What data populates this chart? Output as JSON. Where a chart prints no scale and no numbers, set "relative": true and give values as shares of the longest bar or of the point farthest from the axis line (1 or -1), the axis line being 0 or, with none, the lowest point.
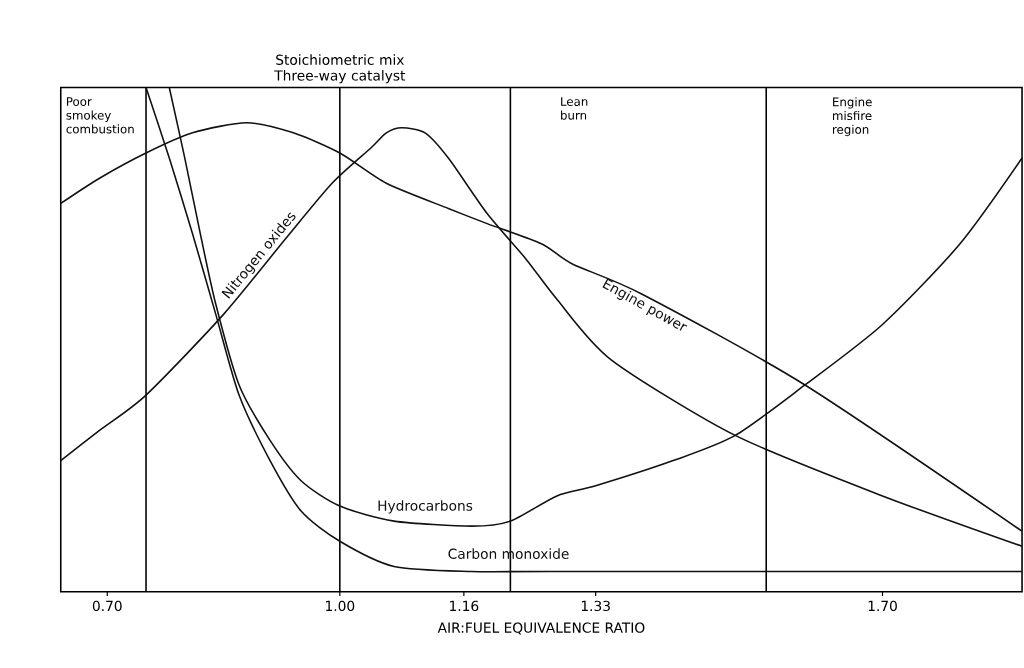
{
  "chart_data": {
    "type": "line",
    "relative": true,
    "xlabel": "AIR:FUEL EQUIVALENCE RATIO",
    "xlim": [
      0.64,
      1.88
    ],
    "xticks": [
      {
        "value": 0.7,
        "label": "0.70"
      },
      {
        "value": 1.0,
        "label": "1.00"
      },
      {
        "value": 1.16,
        "label": "1.16"
      },
      {
        "value": 1.33,
        "label": "1.33"
      },
      {
        "value": 1.7,
        "label": "1.70"
      }
    ],
    "tick_labels": "x",
    "series": [
      {
        "name": "Engine power",
        "color": "#111111",
        "x": [
          0.64,
          0.69,
          0.75,
          0.81,
          0.88,
          0.94,
          1.0,
          1.06,
          1.14,
          1.19,
          1.26,
          1.3,
          1.39,
          1.6,
          1.88
        ],
        "values": [
          0.77,
          0.82,
          0.87,
          0.91,
          0.93,
          0.91,
          0.87,
          0.81,
          0.76,
          0.73,
          0.69,
          0.65,
          0.59,
          0.41,
          0.12
        ]
      },
      {
        "name": "Nitrogen oxides",
        "color": "#111111",
        "x": [
          0.64,
          0.69,
          0.75,
          0.85,
          0.93,
          0.99,
          1.04,
          1.06,
          1.08,
          1.11,
          1.14,
          1.19,
          1.24,
          1.28,
          1.35,
          1.51,
          1.7,
          1.88
        ],
        "values": [
          0.26,
          0.32,
          0.39,
          0.55,
          0.7,
          0.81,
          0.88,
          0.91,
          0.92,
          0.91,
          0.86,
          0.75,
          0.66,
          0.58,
          0.46,
          0.31,
          0.19,
          0.09
        ]
      },
      {
        "name": "Hydrocarbons",
        "color": "#111111",
        "x": [
          0.78,
          0.8,
          0.82,
          0.84,
          0.87,
          0.91,
          0.95,
          1.0,
          1.07,
          1.17,
          1.22,
          1.28,
          1.33,
          1.43,
          1.51,
          1.6,
          1.7,
          1.8,
          1.88
        ],
        "values": [
          1.0,
          0.86,
          0.71,
          0.57,
          0.41,
          0.3,
          0.22,
          0.17,
          0.14,
          0.13,
          0.14,
          0.19,
          0.21,
          0.26,
          0.31,
          0.41,
          0.53,
          0.69,
          0.86
        ]
      },
      {
        "name": "Carbon monoxide",
        "color": "#111111",
        "x": [
          0.75,
          0.78,
          0.81,
          0.84,
          0.87,
          0.91,
          0.95,
          1.0,
          1.07,
          1.17,
          1.27,
          1.88
        ],
        "values": [
          1.0,
          0.86,
          0.71,
          0.55,
          0.39,
          0.26,
          0.16,
          0.1,
          0.05,
          0.04,
          0.04,
          0.04
        ]
      }
    ],
    "ref_lines": [
      {
        "axis": "x",
        "value": 0.75
      },
      {
        "axis": "x",
        "value": 1.0,
        "label": "Stoichiometric mix Three-way catalyst"
      },
      {
        "axis": "x",
        "value": 1.22
      },
      {
        "axis": "x",
        "value": 1.55
      }
    ],
    "annotations": [
      "Poor smokey combustion",
      "Lean burn",
      "Engine misfire region"
    ]
  }
}
